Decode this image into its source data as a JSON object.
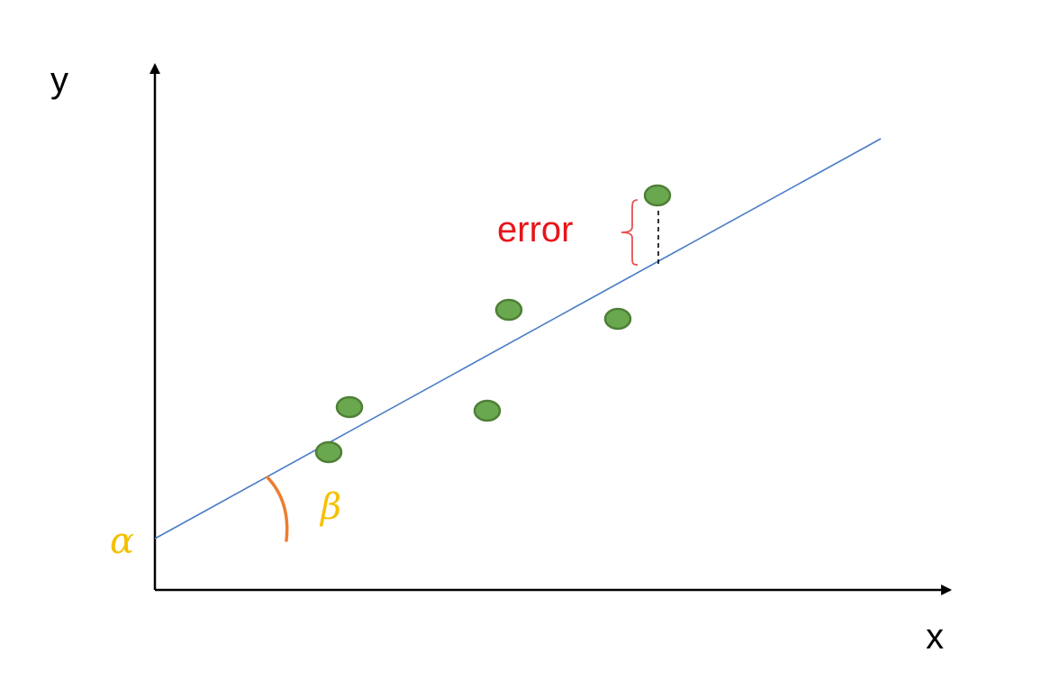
{
  "labels": {
    "y_axis": "y",
    "x_axis": "x",
    "intercept": "α",
    "slope": "β",
    "error": "error"
  },
  "colors": {
    "axis": "#000000",
    "regression_line": "#4a7cc7",
    "point_fill": "#6aa84f",
    "point_stroke": "#4e7f36",
    "greek": "#f5c000",
    "error_text": "#e8141b",
    "error_brace": "#e85050",
    "angle_arc": "#ed7d31",
    "residual": "#000000"
  }
}
